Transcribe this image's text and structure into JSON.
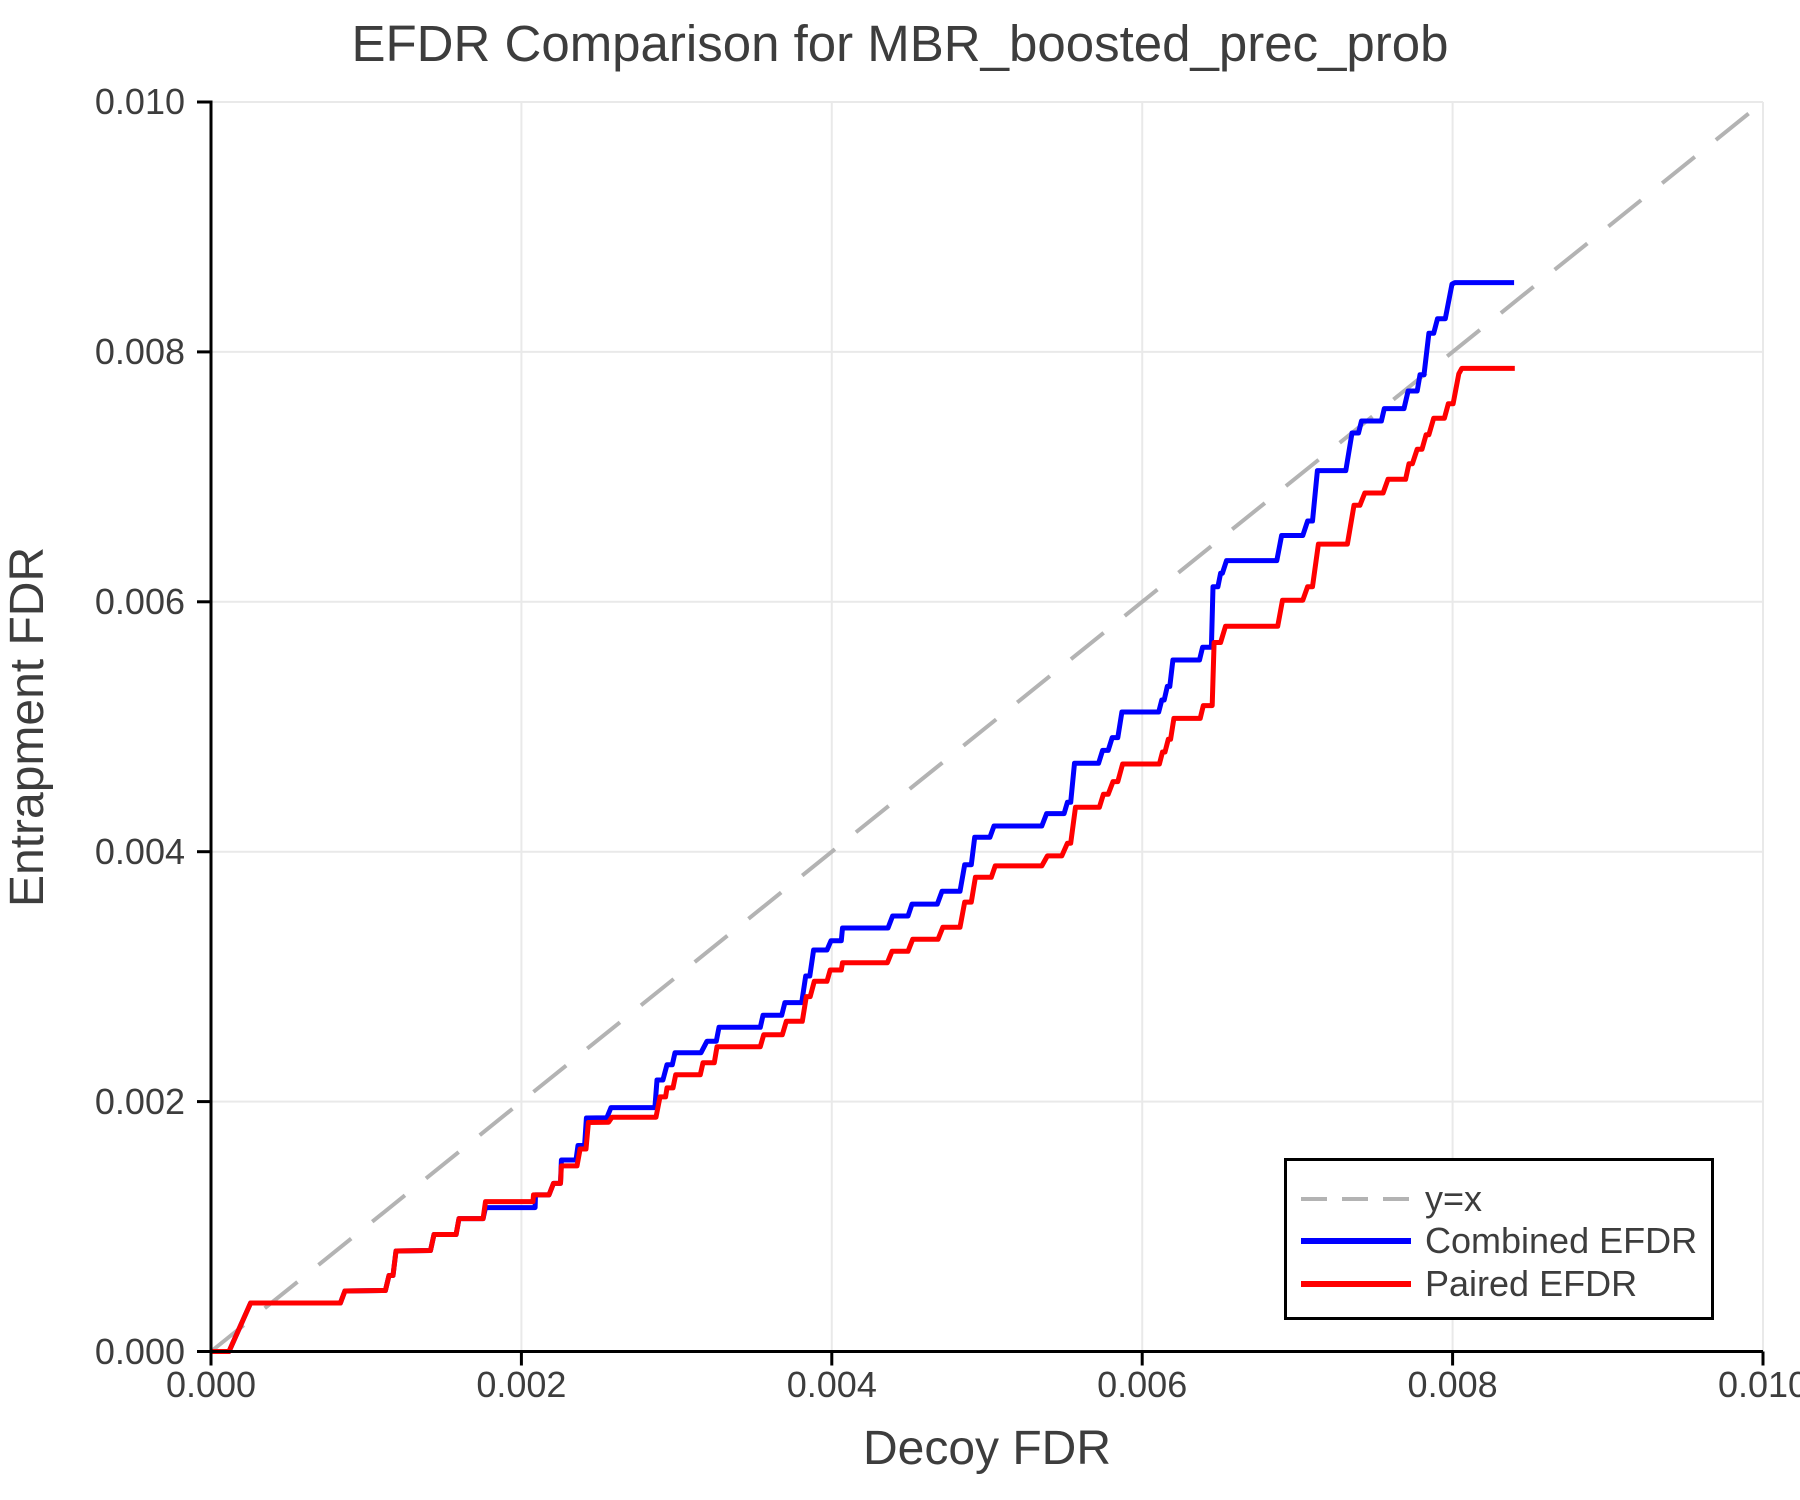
{
  "chart_data": {
    "type": "line",
    "title": "EFDR Comparison for MBR_boosted_prec_prob",
    "xlabel": "Decoy FDR",
    "ylabel": "Entrapment FDR",
    "xlim": [
      0.0,
      0.01
    ],
    "ylim": [
      0.0,
      0.01
    ],
    "x_ticks": [
      0.0,
      0.002,
      0.004,
      0.006,
      0.008,
      0.01
    ],
    "y_ticks": [
      0.0,
      0.002,
      0.004,
      0.006,
      0.008,
      0.01
    ],
    "tick_format_decimals": 3,
    "grid": true,
    "legend_position": "bottom-right",
    "series": [
      {
        "name": "y=x",
        "style": "dashed",
        "color": "#b3b3b3",
        "width": 4,
        "points": [
          [
            0.0,
            0.0
          ],
          [
            0.01,
            0.01
          ]
        ]
      },
      {
        "name": "Combined EFDR",
        "style": "solid",
        "color": "#0000ff",
        "width": 5,
        "points": [
          [
            0.0,
            0.0
          ],
          [
            0.000116,
            0.0
          ],
          [
            0.000255,
            0.000388
          ],
          [
            0.000834,
            0.000388
          ],
          [
            0.000863,
            0.000484
          ],
          [
            0.001124,
            0.000488
          ],
          [
            0.001147,
            0.000608
          ],
          [
            0.001173,
            0.000608
          ],
          [
            0.001192,
            0.000804
          ],
          [
            0.001414,
            0.000808
          ],
          [
            0.001437,
            0.000936
          ],
          [
            0.001579,
            0.000936
          ],
          [
            0.001598,
            0.001064
          ],
          [
            0.001753,
            0.001064
          ],
          [
            0.001769,
            0.001152
          ],
          [
            0.002088,
            0.001152
          ],
          [
            0.002091,
            0.001253
          ],
          [
            0.002178,
            0.001253
          ],
          [
            0.002207,
            0.001345
          ],
          [
            0.002252,
            0.001345
          ],
          [
            0.002258,
            0.001533
          ],
          [
            0.002352,
            0.001533
          ],
          [
            0.002365,
            0.001649
          ],
          [
            0.002407,
            0.001649
          ],
          [
            0.002419,
            0.001869
          ],
          [
            0.00255,
            0.00187
          ],
          [
            0.002577,
            0.001952
          ],
          [
            0.00286,
            0.001952
          ],
          [
            0.002874,
            0.002173
          ],
          [
            0.002912,
            0.002173
          ],
          [
            0.002938,
            0.002295
          ],
          [
            0.002972,
            0.002295
          ],
          [
            0.00299,
            0.002391
          ],
          [
            0.003157,
            0.002391
          ],
          [
            0.003196,
            0.002483
          ],
          [
            0.003256,
            0.002483
          ],
          [
            0.003273,
            0.002595
          ],
          [
            0.003539,
            0.002595
          ],
          [
            0.003557,
            0.002691
          ],
          [
            0.003677,
            0.002691
          ],
          [
            0.003698,
            0.002792
          ],
          [
            0.003806,
            0.002792
          ],
          [
            0.003832,
            0.003005
          ],
          [
            0.003858,
            0.003005
          ],
          [
            0.003883,
            0.003213
          ],
          [
            0.003969,
            0.003213
          ],
          [
            0.003995,
            0.003288
          ],
          [
            0.004061,
            0.003288
          ],
          [
            0.004069,
            0.003389
          ],
          [
            0.004362,
            0.003389
          ],
          [
            0.004392,
            0.003485
          ],
          [
            0.004491,
            0.003485
          ],
          [
            0.004517,
            0.003581
          ],
          [
            0.00468,
            0.003581
          ],
          [
            0.00471,
            0.003683
          ],
          [
            0.004826,
            0.003683
          ],
          [
            0.004856,
            0.003896
          ],
          [
            0.004899,
            0.003896
          ],
          [
            0.004921,
            0.004115
          ],
          [
            0.005019,
            0.004115
          ],
          [
            0.005045,
            0.004206
          ],
          [
            0.005353,
            0.004206
          ],
          [
            0.005384,
            0.004305
          ],
          [
            0.005497,
            0.004305
          ],
          [
            0.005518,
            0.004395
          ],
          [
            0.005539,
            0.004395
          ],
          [
            0.005564,
            0.004708
          ],
          [
            0.005719,
            0.004708
          ],
          [
            0.005745,
            0.004811
          ],
          [
            0.005781,
            0.004811
          ],
          [
            0.005807,
            0.004913
          ],
          [
            0.005843,
            0.004913
          ],
          [
            0.005869,
            0.005118
          ],
          [
            0.006106,
            0.005118
          ],
          [
            0.006126,
            0.005214
          ],
          [
            0.006142,
            0.005214
          ],
          [
            0.006162,
            0.005323
          ],
          [
            0.006178,
            0.005323
          ],
          [
            0.006198,
            0.005534
          ],
          [
            0.006369,
            0.005534
          ],
          [
            0.006389,
            0.005637
          ],
          [
            0.006446,
            0.005637
          ],
          [
            0.006456,
            0.006121
          ],
          [
            0.006488,
            0.006121
          ],
          [
            0.006505,
            0.006229
          ],
          [
            0.006517,
            0.006229
          ],
          [
            0.006543,
            0.00633
          ],
          [
            0.006867,
            0.00633
          ],
          [
            0.006898,
            0.006531
          ],
          [
            0.007035,
            0.006531
          ],
          [
            0.007066,
            0.006647
          ],
          [
            0.007097,
            0.006647
          ],
          [
            0.007129,
            0.00705
          ],
          [
            0.007312,
            0.00705
          ],
          [
            0.007352,
            0.007351
          ],
          [
            0.007394,
            0.007351
          ],
          [
            0.007413,
            0.007447
          ],
          [
            0.007541,
            0.007447
          ],
          [
            0.00756,
            0.007546
          ],
          [
            0.007687,
            0.007546
          ],
          [
            0.007713,
            0.007687
          ],
          [
            0.007772,
            0.007687
          ],
          [
            0.00779,
            0.007817
          ],
          [
            0.007816,
            0.007817
          ],
          [
            0.007847,
            0.00815
          ],
          [
            0.007878,
            0.00815
          ],
          [
            0.007903,
            0.008266
          ],
          [
            0.007953,
            0.008266
          ],
          [
            0.007996,
            0.008543
          ],
          [
            0.008015,
            0.008555
          ],
          [
            0.008396,
            0.008555
          ]
        ]
      },
      {
        "name": "Paired EFDR",
        "style": "solid",
        "color": "#ff0000",
        "width": 5,
        "points": [
          [
            0.0,
            0.0
          ],
          [
            0.000116,
            0.0
          ],
          [
            0.000255,
            0.000388
          ],
          [
            0.000834,
            0.000388
          ],
          [
            0.000863,
            0.000484
          ],
          [
            0.001124,
            0.000488
          ],
          [
            0.001147,
            0.000608
          ],
          [
            0.001173,
            0.000608
          ],
          [
            0.001192,
            0.000804
          ],
          [
            0.001414,
            0.000808
          ],
          [
            0.001437,
            0.000936
          ],
          [
            0.001579,
            0.000936
          ],
          [
            0.001598,
            0.001064
          ],
          [
            0.001753,
            0.001064
          ],
          [
            0.001769,
            0.0012
          ],
          [
            0.002075,
            0.0012
          ],
          [
            0.002078,
            0.001253
          ],
          [
            0.002178,
            0.001253
          ],
          [
            0.002207,
            0.001345
          ],
          [
            0.002252,
            0.001345
          ],
          [
            0.002258,
            0.001485
          ],
          [
            0.002358,
            0.001485
          ],
          [
            0.002378,
            0.001621
          ],
          [
            0.002416,
            0.001621
          ],
          [
            0.002432,
            0.001833
          ],
          [
            0.002562,
            0.001835
          ],
          [
            0.002584,
            0.001875
          ],
          [
            0.002867,
            0.001875
          ],
          [
            0.002893,
            0.002038
          ],
          [
            0.002929,
            0.002038
          ],
          [
            0.002938,
            0.00211
          ],
          [
            0.002977,
            0.00211
          ],
          [
            0.002994,
            0.002215
          ],
          [
            0.003153,
            0.002215
          ],
          [
            0.00317,
            0.002311
          ],
          [
            0.003243,
            0.002311
          ],
          [
            0.00326,
            0.002439
          ],
          [
            0.003539,
            0.002439
          ],
          [
            0.003561,
            0.002535
          ],
          [
            0.003681,
            0.002535
          ],
          [
            0.003707,
            0.002643
          ],
          [
            0.00381,
            0.002643
          ],
          [
            0.003836,
            0.00284
          ],
          [
            0.003861,
            0.00284
          ],
          [
            0.003887,
            0.002963
          ],
          [
            0.003969,
            0.002963
          ],
          [
            0.00399,
            0.003053
          ],
          [
            0.004061,
            0.003053
          ],
          [
            0.004069,
            0.003112
          ],
          [
            0.004358,
            0.003112
          ],
          [
            0.004388,
            0.003203
          ],
          [
            0.004491,
            0.003203
          ],
          [
            0.004521,
            0.003299
          ],
          [
            0.004684,
            0.003299
          ],
          [
            0.004715,
            0.003395
          ],
          [
            0.004826,
            0.003395
          ],
          [
            0.004856,
            0.003597
          ],
          [
            0.004899,
            0.003597
          ],
          [
            0.004925,
            0.003795
          ],
          [
            0.005028,
            0.003795
          ],
          [
            0.005053,
            0.003886
          ],
          [
            0.005353,
            0.003886
          ],
          [
            0.005389,
            0.003966
          ],
          [
            0.005482,
            0.003966
          ],
          [
            0.005518,
            0.004068
          ],
          [
            0.005539,
            0.004068
          ],
          [
            0.00557,
            0.004356
          ],
          [
            0.005724,
            0.004356
          ],
          [
            0.00575,
            0.004459
          ],
          [
            0.005781,
            0.004459
          ],
          [
            0.005812,
            0.004561
          ],
          [
            0.005843,
            0.004561
          ],
          [
            0.005874,
            0.004702
          ],
          [
            0.006111,
            0.004702
          ],
          [
            0.006131,
            0.004798
          ],
          [
            0.006147,
            0.004798
          ],
          [
            0.006168,
            0.0049
          ],
          [
            0.006183,
            0.0049
          ],
          [
            0.006204,
            0.005067
          ],
          [
            0.006374,
            0.005067
          ],
          [
            0.006394,
            0.005169
          ],
          [
            0.006451,
            0.005169
          ],
          [
            0.006463,
            0.005674
          ],
          [
            0.006505,
            0.005674
          ],
          [
            0.006537,
            0.005804
          ],
          [
            0.006873,
            0.005804
          ],
          [
            0.006904,
            0.006013
          ],
          [
            0.007035,
            0.006013
          ],
          [
            0.007066,
            0.006121
          ],
          [
            0.007097,
            0.006121
          ],
          [
            0.007135,
            0.006462
          ],
          [
            0.007322,
            0.006462
          ],
          [
            0.007365,
            0.006772
          ],
          [
            0.007403,
            0.006772
          ],
          [
            0.007434,
            0.006871
          ],
          [
            0.007552,
            0.006871
          ],
          [
            0.007584,
            0.00698
          ],
          [
            0.007697,
            0.00698
          ],
          [
            0.007719,
            0.007105
          ],
          [
            0.007741,
            0.007105
          ],
          [
            0.007772,
            0.007221
          ],
          [
            0.007803,
            0.007221
          ],
          [
            0.007829,
            0.007337
          ],
          [
            0.007847,
            0.007337
          ],
          [
            0.007878,
            0.007469
          ],
          [
            0.007947,
            0.007469
          ],
          [
            0.007972,
            0.007585
          ],
          [
            0.008003,
            0.007585
          ],
          [
            0.00804,
            0.007825
          ],
          [
            0.008059,
            0.007868
          ],
          [
            0.008401,
            0.007868
          ]
        ]
      }
    ]
  },
  "legend": {
    "items": [
      {
        "label": "y=x"
      },
      {
        "label": "Combined EFDR"
      },
      {
        "label": "Paired EFDR"
      }
    ]
  },
  "colors": {
    "background": "#ffffff",
    "text": "#3d3d3d",
    "axis": "#000000",
    "grid": "#e9e9e9",
    "legend_border": "#000000",
    "diagonal": "#b3b3b3",
    "combined": "#0000ff",
    "paired": "#ff0000"
  }
}
